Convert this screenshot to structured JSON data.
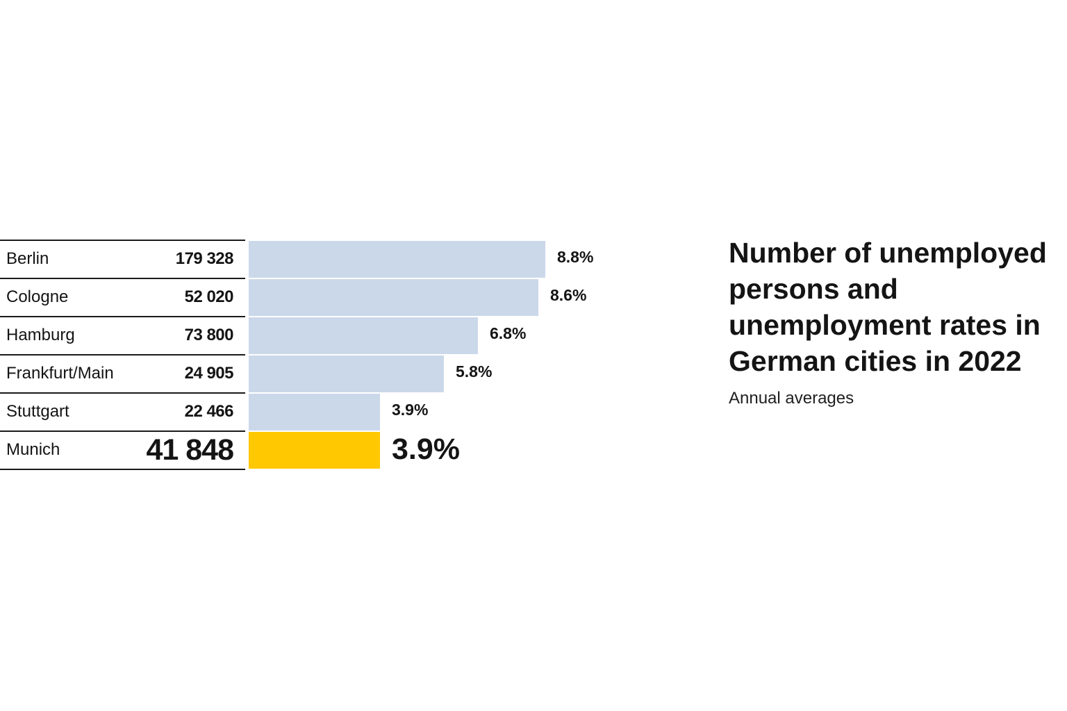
{
  "title": "Number of unemployed persons and unemployment rates in German cities in 2022",
  "subtitle": "Annual averages",
  "colors": {
    "bar": "#cbd8ea",
    "highlight_bar": "#ffc800",
    "line": "#1a1a1a",
    "text": "#141414"
  },
  "chart_data": {
    "type": "bar",
    "orientation": "horizontal",
    "categories": [
      "Berlin",
      "Cologne",
      "Hamburg",
      "Frankfurt/Main",
      "Stuttgart",
      "Munich"
    ],
    "unemployed_persons": [
      179328,
      52020,
      73800,
      24905,
      22466,
      41848
    ],
    "unemployed_persons_labels": [
      "179 328",
      "52 020",
      "73 800",
      "24 905",
      "22 466",
      "41 848"
    ],
    "series": [
      {
        "values": [
          8.8,
          8.6,
          6.8,
          5.8,
          3.9,
          3.9
        ]
      }
    ],
    "value_labels": [
      "8.8%",
      "8.6%",
      "6.8%",
      "5.8%",
      "3.9%",
      "3.9%"
    ],
    "highlighted_category": "Munich",
    "xlim": [
      0,
      8.8
    ],
    "grid": false,
    "legend": "none"
  }
}
